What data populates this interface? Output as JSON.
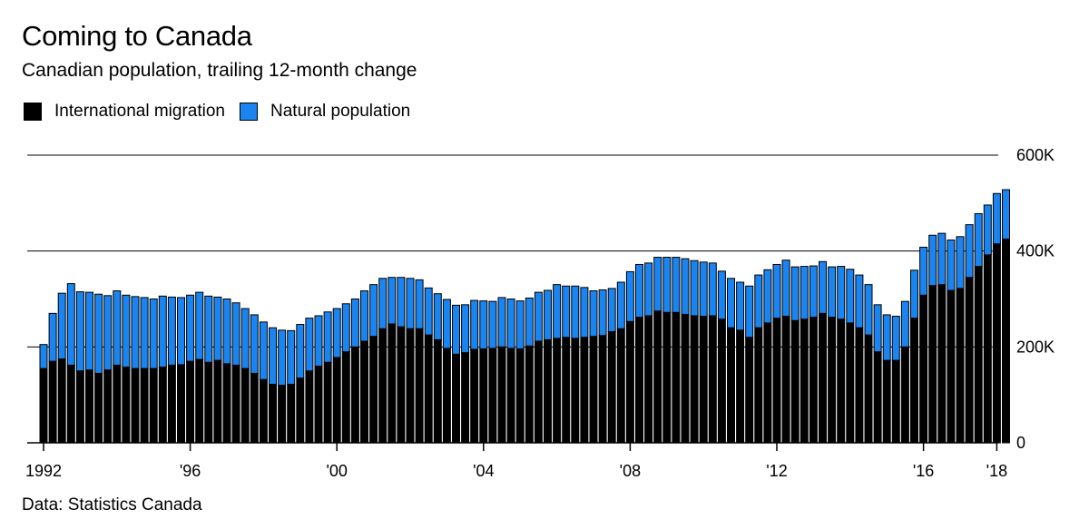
{
  "title": "Coming to Canada",
  "subtitle": "Canadian population, trailing 12-month change",
  "source": "Data: Statistics Canada",
  "legend": [
    {
      "label": "International migration",
      "color": "#000000"
    },
    {
      "label": "Natural population",
      "color": "#1a84f0"
    }
  ],
  "chart_data": {
    "type": "bar",
    "stacked": true,
    "ylim": [
      0,
      600000
    ],
    "yticks": [
      0,
      200000,
      400000,
      600000
    ],
    "ytick_labels": [
      "0",
      "200K",
      "400K",
      "600K"
    ],
    "xtick_labels": [
      {
        "label": "1992",
        "index": 0
      },
      {
        "label": "'96",
        "index": 16
      },
      {
        "label": "'00",
        "index": 32
      },
      {
        "label": "'04",
        "index": 48
      },
      {
        "label": "'08",
        "index": 64
      },
      {
        "label": "'12",
        "index": 80
      },
      {
        "label": "'16",
        "index": 96
      },
      {
        "label": "'18",
        "index": 104
      }
    ],
    "x_start": "1992 Q1",
    "frequency": "quarterly",
    "series": [
      {
        "name": "International migration",
        "color": "#000000",
        "values": [
          155000,
          170000,
          175000,
          162000,
          150000,
          152000,
          145000,
          152000,
          162000,
          158000,
          155000,
          155000,
          155000,
          158000,
          162000,
          163000,
          170000,
          174000,
          168000,
          172000,
          165000,
          162000,
          155000,
          145000,
          132000,
          122000,
          120000,
          122000,
          135000,
          150000,
          160000,
          168000,
          178000,
          190000,
          200000,
          212000,
          222000,
          238000,
          248000,
          242000,
          238000,
          238000,
          225000,
          215000,
          197000,
          185000,
          188000,
          195000,
          196000,
          197000,
          200000,
          197000,
          196000,
          202000,
          212000,
          215000,
          218000,
          220000,
          218000,
          220000,
          222000,
          224000,
          232000,
          238000,
          253000,
          262000,
          265000,
          275000,
          272000,
          272000,
          268000,
          265000,
          264000,
          265000,
          258000,
          240000,
          235000,
          220000,
          240000,
          250000,
          260000,
          264000,
          255000,
          258000,
          262000,
          270000,
          262000,
          258000,
          250000,
          240000,
          225000,
          190000,
          172000,
          172000,
          200000,
          260000,
          308000,
          328000,
          330000,
          318000,
          322000,
          345000,
          368000,
          392000,
          415000,
          425000
        ]
      },
      {
        "name": "Natural population",
        "color": "#1a84f0",
        "values": [
          50000,
          100000,
          137000,
          170000,
          165000,
          162000,
          165000,
          155000,
          155000,
          150000,
          150000,
          148000,
          145000,
          148000,
          142000,
          140000,
          138000,
          140000,
          138000,
          132000,
          135000,
          130000,
          125000,
          122000,
          120000,
          118000,
          115000,
          112000,
          112000,
          110000,
          105000,
          105000,
          102000,
          100000,
          100000,
          105000,
          108000,
          105000,
          97000,
          103000,
          105000,
          102000,
          98000,
          96000,
          102000,
          102000,
          100000,
          102000,
          100000,
          98000,
          103000,
          103000,
          100000,
          100000,
          102000,
          103000,
          112000,
          107000,
          109000,
          104000,
          95000,
          95000,
          90000,
          97000,
          104000,
          110000,
          110000,
          112000,
          115000,
          115000,
          116000,
          115000,
          113000,
          110000,
          100000,
          103000,
          100000,
          107000,
          110000,
          111000,
          112000,
          117000,
          112000,
          110000,
          107000,
          108000,
          105000,
          110000,
          112000,
          110000,
          105000,
          98000,
          95000,
          92000,
          95000,
          100000,
          100000,
          105000,
          107000,
          105000,
          108000,
          110000,
          110000,
          104000,
          105000,
          103000
        ]
      }
    ]
  }
}
